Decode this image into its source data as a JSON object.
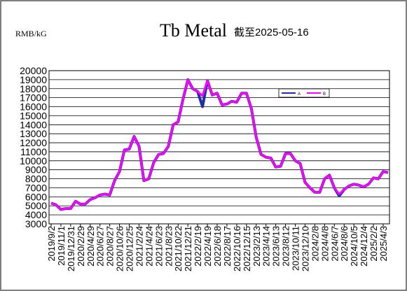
{
  "chart_data": {
    "type": "line",
    "title": "Tb Metal",
    "subtitle": "截至2025-05-16",
    "y_label": "RMB/kG",
    "categories": [
      "2019/9/2",
      null,
      "2019/11/1",
      null,
      "2019/12/31",
      null,
      "2020/2/29",
      null,
      "2020/4/29",
      null,
      "2020/6/27",
      null,
      "2020/8/27",
      null,
      "2020/10/26",
      null,
      "2020/12/25",
      null,
      "2021/2/24",
      null,
      "2021/4/24",
      null,
      "2021/6/23",
      null,
      "2021/8/23",
      null,
      "2021/10/22",
      null,
      "2021/12/21",
      null,
      "2022/2/19",
      null,
      "2022/4/19",
      null,
      "2022/6/18",
      null,
      "2022/8/17",
      null,
      "2022/10/16",
      null,
      "2022/12/15",
      null,
      "2023/2/13",
      null,
      "2023/4/14",
      null,
      "2023/6/13",
      null,
      "2023/8/12",
      null,
      "2023/10/11",
      null,
      "2023/12/10",
      null,
      "2024/2/8",
      null,
      "2024/4/8",
      null,
      "2024/6/7",
      null,
      "2024/8/6",
      null,
      "2024/10/5",
      null,
      "2024/12/4",
      null,
      "2025/2/2",
      null,
      "2025/4/3",
      null
    ],
    "series": [
      {
        "name": "A",
        "color": "#1f2fa8",
        "values": [
          5300,
          5100,
          4600,
          4700,
          4700,
          5500,
          5200,
          5200,
          5700,
          5900,
          6200,
          6300,
          6200,
          7800,
          8800,
          11200,
          11300,
          12700,
          11600,
          7800,
          8000,
          9800,
          10700,
          10800,
          11600,
          14000,
          14300,
          16800,
          19000,
          18000,
          17700,
          16000,
          18900,
          17300,
          17500,
          16200,
          16300,
          16600,
          16500,
          17500,
          17500,
          15800,
          12600,
          10700,
          10400,
          10300,
          9300,
          9400,
          10800,
          10800,
          10000,
          9700,
          7600,
          7000,
          6500,
          6500,
          8000,
          8400,
          7000,
          6100,
          6800,
          7200,
          7400,
          7300,
          7100,
          7400,
          8100,
          8000,
          8800,
          8700
        ]
      },
      {
        "name": "B",
        "color": "#ff00ff",
        "values": [
          5300,
          5100,
          4600,
          4700,
          4700,
          5500,
          5200,
          5200,
          5700,
          5900,
          6200,
          6300,
          6200,
          7800,
          8800,
          11200,
          11300,
          12700,
          11600,
          7800,
          8000,
          9800,
          10700,
          10800,
          11600,
          14000,
          14300,
          16800,
          19000,
          18000,
          17700,
          17200,
          18900,
          17300,
          17500,
          16200,
          16300,
          16600,
          16500,
          17500,
          17500,
          15800,
          12600,
          10700,
          10400,
          10300,
          9300,
          9400,
          10800,
          10800,
          10000,
          9700,
          7600,
          7000,
          6500,
          6500,
          8000,
          8400,
          7000,
          6300,
          6800,
          7200,
          7400,
          7300,
          7100,
          7400,
          8100,
          8000,
          8800,
          8700
        ]
      }
    ],
    "ylim": [
      3000,
      20000
    ],
    "yticks": [
      3000,
      4000,
      5000,
      6000,
      7000,
      8000,
      9000,
      10000,
      11000,
      12000,
      13000,
      14000,
      15000,
      16000,
      17000,
      18000,
      19000,
      20000
    ],
    "grid": true
  }
}
